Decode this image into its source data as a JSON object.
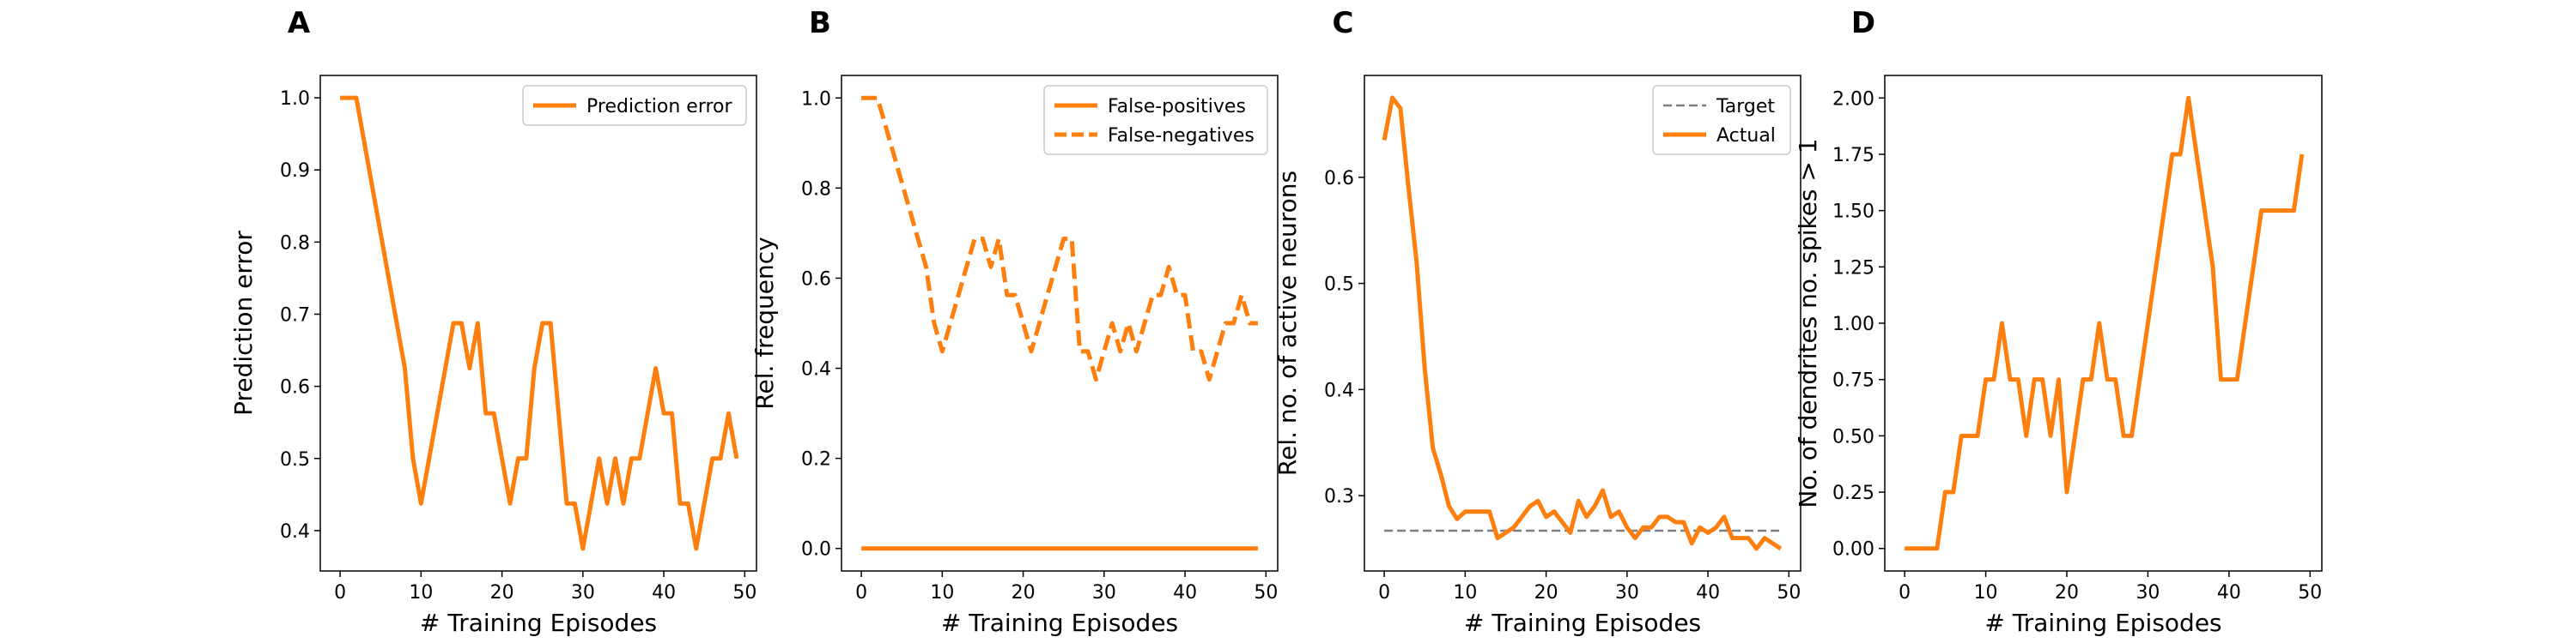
{
  "chart_data": [
    {
      "type": "line",
      "title": "A",
      "x_label": "# Training Episodes",
      "y_label": "Prediction error",
      "x": [
        0,
        1,
        2,
        3,
        4,
        5,
        6,
        7,
        8,
        9,
        10,
        11,
        12,
        13,
        14,
        15,
        16,
        17,
        18,
        19,
        20,
        21,
        22,
        23,
        24,
        25,
        26,
        27,
        28,
        29,
        30,
        31,
        32,
        33,
        34,
        35,
        36,
        37,
        38,
        39,
        40,
        41,
        42,
        43,
        44,
        45,
        46,
        47,
        48,
        49
      ],
      "series": [
        {
          "name": "Prediction error",
          "color": "#ff7f0e",
          "dashed": false,
          "values": [
            1,
            1,
            1,
            0.9375,
            0.875,
            0.8125,
            0.75,
            0.6875,
            0.625,
            0.5,
            0.4375,
            0.5,
            0.5625,
            0.625,
            0.6875,
            0.6875,
            0.625,
            0.6875,
            0.5625,
            0.5625,
            0.5,
            0.4375,
            0.5,
            0.5,
            0.625,
            0.6875,
            0.6875,
            0.5625,
            0.4375,
            0.4375,
            0.375,
            0.4375,
            0.5,
            0.4375,
            0.5,
            0.4375,
            0.5,
            0.5,
            0.5625,
            0.625,
            0.5625,
            0.5625,
            0.4375,
            0.4375,
            0.375,
            0.4375,
            0.5,
            0.5,
            0.5625,
            0.5
          ]
        }
      ],
      "xlim": [
        -2.45,
        51.45
      ],
      "xticks": [
        0,
        10,
        20,
        30,
        40,
        50
      ],
      "ylim": [
        0.344,
        1.031
      ],
      "yticks": [
        0.4,
        0.5,
        0.6,
        0.7,
        0.8,
        0.9,
        {
          "value": 1,
          "label": "1.0"
        }
      ],
      "legend": "upper right"
    },
    {
      "type": "line",
      "title": "B",
      "x_label": "# Training Episodes",
      "y_label": "Rel. frequency",
      "x": [
        0,
        1,
        2,
        3,
        4,
        5,
        6,
        7,
        8,
        9,
        10,
        11,
        12,
        13,
        14,
        15,
        16,
        17,
        18,
        19,
        20,
        21,
        22,
        23,
        24,
        25,
        26,
        27,
        28,
        29,
        30,
        31,
        32,
        33,
        34,
        35,
        36,
        37,
        38,
        39,
        40,
        41,
        42,
        43,
        44,
        45,
        46,
        47,
        48,
        49
      ],
      "series": [
        {
          "name": "False-positives",
          "color": "#ff7f0e",
          "dashed": false,
          "values": [
            0,
            0,
            0,
            0,
            0,
            0,
            0,
            0,
            0,
            0,
            0,
            0,
            0,
            0,
            0,
            0,
            0,
            0,
            0,
            0,
            0,
            0,
            0,
            0,
            0,
            0,
            0,
            0,
            0,
            0,
            0,
            0,
            0,
            0,
            0,
            0,
            0,
            0,
            0,
            0,
            0,
            0,
            0,
            0,
            0,
            0,
            0,
            0,
            0,
            0
          ]
        },
        {
          "name": "False-negatives",
          "color": "#ff7f0e",
          "dashed": true,
          "values": [
            1,
            1,
            1,
            0.9375,
            0.875,
            0.8125,
            0.75,
            0.6875,
            0.625,
            0.5,
            0.4375,
            0.5,
            0.5625,
            0.625,
            0.6875,
            0.6875,
            0.625,
            0.6875,
            0.5625,
            0.5625,
            0.5,
            0.4375,
            0.5,
            0.5625,
            0.625,
            0.6875,
            0.6875,
            0.4375,
            0.4375,
            0.375,
            0.4375,
            0.5,
            0.4375,
            0.5,
            0.4375,
            0.5,
            0.5625,
            0.5625,
            0.625,
            0.5625,
            0.5625,
            0.4375,
            0.4375,
            0.375,
            0.4375,
            0.5,
            0.5,
            0.5625,
            0.5,
            0.5
          ]
        }
      ],
      "xlim": [
        -2.45,
        51.45
      ],
      "xticks": [
        0,
        10,
        20,
        30,
        40,
        50
      ],
      "ylim": [
        -0.05,
        1.05
      ],
      "yticks": [
        {
          "value": 0,
          "label": "0.0"
        },
        0.2,
        0.4,
        0.6,
        0.8,
        {
          "value": 1,
          "label": "1.0"
        }
      ],
      "legend": "upper right"
    },
    {
      "type": "line",
      "title": "C",
      "x_label": "# Training Episodes",
      "y_label": "Rel. no. of active neurons",
      "x": [
        0,
        1,
        2,
        3,
        4,
        5,
        6,
        7,
        8,
        9,
        10,
        11,
        12,
        13,
        14,
        15,
        16,
        17,
        18,
        19,
        20,
        21,
        22,
        23,
        24,
        25,
        26,
        27,
        28,
        29,
        30,
        31,
        32,
        33,
        34,
        35,
        36,
        37,
        38,
        39,
        40,
        41,
        42,
        43,
        44,
        45,
        46,
        47,
        48,
        49
      ],
      "series": [
        {
          "name": "Target",
          "color": "#7f7f7f",
          "dashed": true,
          "thin": true,
          "values": [
            0.267,
            0.267,
            0.267,
            0.267,
            0.267,
            0.267,
            0.267,
            0.267,
            0.267,
            0.267,
            0.267,
            0.267,
            0.267,
            0.267,
            0.267,
            0.267,
            0.267,
            0.267,
            0.267,
            0.267,
            0.267,
            0.267,
            0.267,
            0.267,
            0.267,
            0.267,
            0.267,
            0.267,
            0.267,
            0.267,
            0.267,
            0.267,
            0.267,
            0.267,
            0.267,
            0.267,
            0.267,
            0.267,
            0.267,
            0.267,
            0.267,
            0.267,
            0.267,
            0.267,
            0.267,
            0.267,
            0.267,
            0.267,
            0.267,
            0.267
          ]
        },
        {
          "name": "Actual",
          "color": "#ff7f0e",
          "dashed": false,
          "values": [
            0.635,
            0.675,
            0.665,
            0.59,
            0.52,
            0.42,
            0.345,
            0.32,
            0.29,
            0.278,
            0.285,
            0.285,
            0.285,
            0.285,
            0.26,
            0.265,
            0.27,
            0.28,
            0.29,
            0.295,
            0.28,
            0.285,
            0.275,
            0.265,
            0.295,
            0.28,
            0.29,
            0.305,
            0.28,
            0.285,
            0.27,
            0.26,
            0.27,
            0.27,
            0.28,
            0.28,
            0.275,
            0.275,
            0.255,
            0.27,
            0.265,
            0.27,
            0.28,
            0.26,
            0.26,
            0.26,
            0.25,
            0.26,
            0.255,
            0.25
          ]
        }
      ],
      "xlim": [
        -2.45,
        51.45
      ],
      "xticks": [
        0,
        10,
        20,
        30,
        40,
        50
      ],
      "ylim": [
        0.229,
        0.696
      ],
      "yticks": [
        0.3,
        0.4,
        0.5,
        0.6
      ],
      "legend": "upper right"
    },
    {
      "type": "line",
      "title": "D",
      "x_label": "# Training Episodes",
      "y_label": "No. of dendrites no. spikes > 1",
      "x": [
        0,
        1,
        2,
        3,
        4,
        5,
        6,
        7,
        8,
        9,
        10,
        11,
        12,
        13,
        14,
        15,
        16,
        17,
        18,
        19,
        20,
        21,
        22,
        23,
        24,
        25,
        26,
        27,
        28,
        29,
        30,
        31,
        32,
        33,
        34,
        35,
        36,
        37,
        38,
        39,
        40,
        41,
        42,
        43,
        44,
        45,
        46,
        47,
        48,
        49
      ],
      "series": [
        {
          "color": "#ff7f0e",
          "dashed": false,
          "values": [
            0,
            0,
            0,
            0,
            0,
            0.25,
            0.25,
            0.5,
            0.5,
            0.5,
            0.75,
            0.75,
            1,
            0.75,
            0.75,
            0.5,
            0.75,
            0.75,
            0.5,
            0.75,
            0.25,
            0.5,
            0.75,
            0.75,
            1,
            0.75,
            0.75,
            0.5,
            0.5,
            0.75,
            1,
            1.25,
            1.5,
            1.75,
            1.75,
            2,
            1.75,
            1.5,
            1.25,
            0.75,
            0.75,
            0.75,
            1,
            1.25,
            1.5,
            1.5,
            1.5,
            1.5,
            1.5,
            1.75
          ]
        }
      ],
      "xlim": [
        -2.45,
        51.45
      ],
      "xticks": [
        0,
        10,
        20,
        30,
        40,
        50
      ],
      "ylim": [
        -0.1,
        2.1
      ],
      "yticks": [
        {
          "value": 0,
          "label": "0.00"
        },
        0.25,
        {
          "value": 0.5,
          "label": "0.50"
        },
        0.75,
        {
          "value": 1,
          "label": "1.00"
        },
        1.25,
        {
          "value": 1.5,
          "label": "1.50"
        },
        1.75,
        {
          "value": 2,
          "label": "2.00"
        }
      ]
    }
  ]
}
